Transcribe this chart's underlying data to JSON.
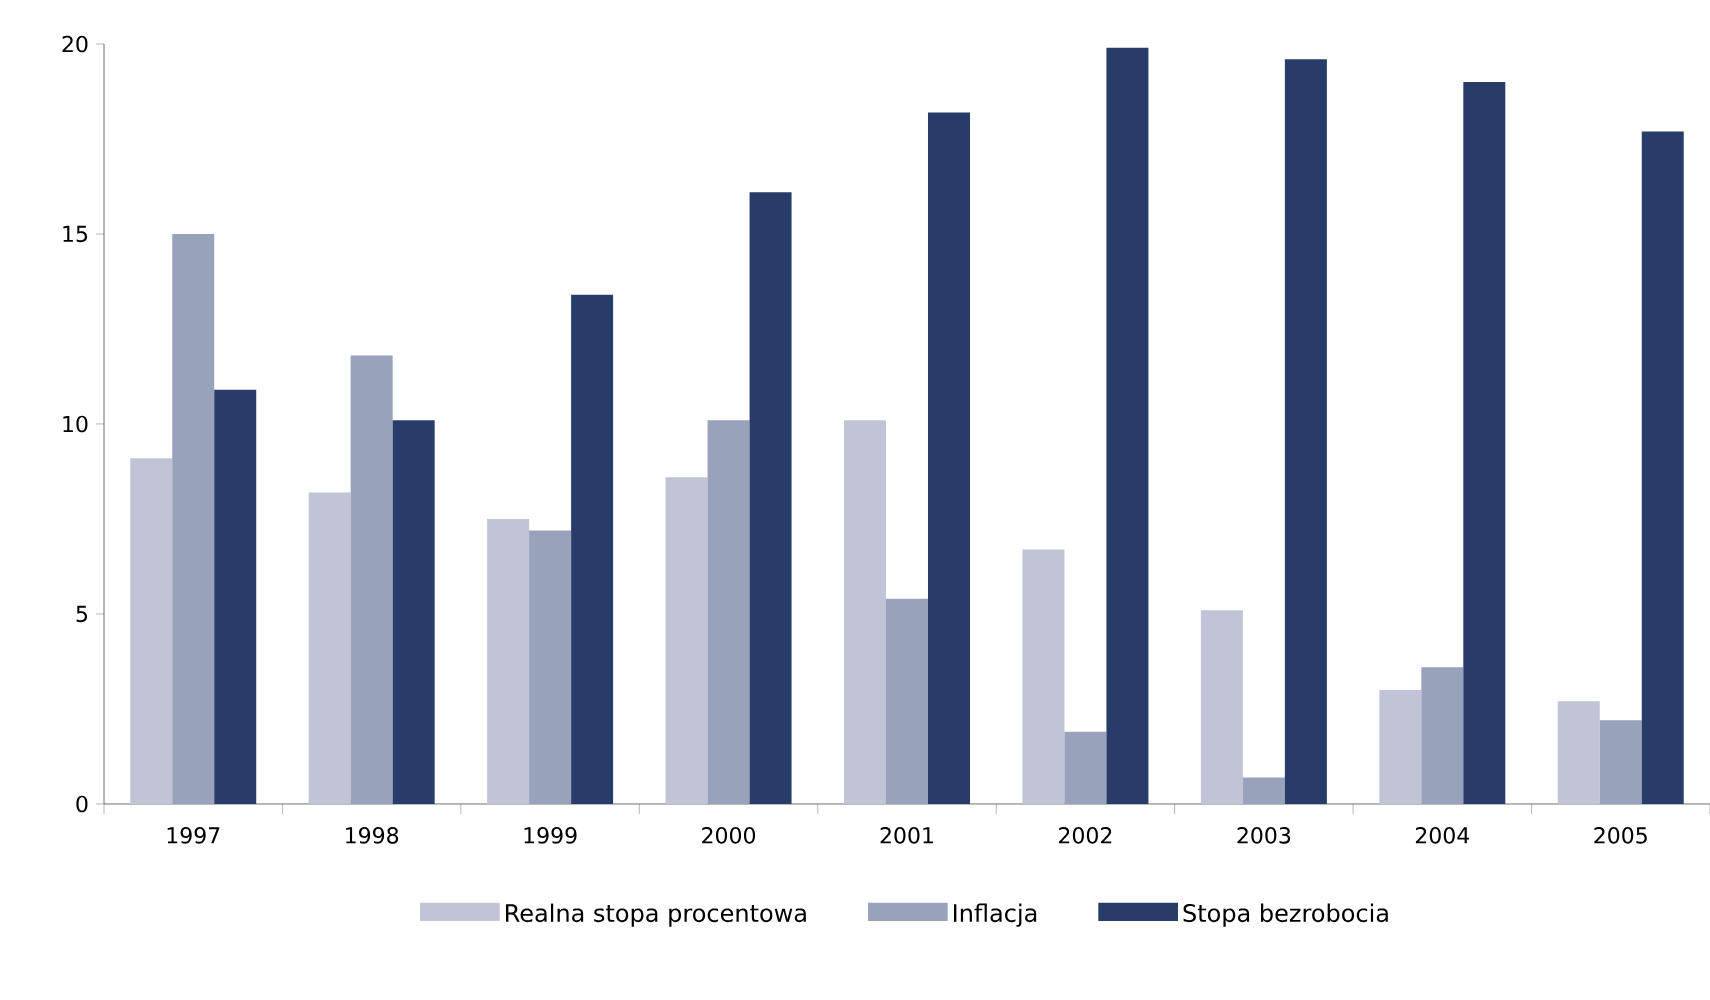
{
  "chart_data": {
    "type": "bar",
    "categories": [
      "1997",
      "1998",
      "1999",
      "2000",
      "2001",
      "2002",
      "2003",
      "2004",
      "2005"
    ],
    "series": [
      {
        "name": "Realna stopa procentowa",
        "color": "#c0c4d6",
        "values": [
          9.1,
          8.2,
          7.5,
          8.6,
          10.1,
          6.7,
          5.1,
          3.0,
          2.7
        ]
      },
      {
        "name": "Inflacja",
        "color": "#98a2bb",
        "values": [
          15.0,
          11.8,
          7.2,
          10.1,
          5.4,
          1.9,
          0.7,
          3.6,
          2.2
        ]
      },
      {
        "name": "Stopa bezrobocia",
        "color": "#283c6a",
        "values": [
          10.9,
          10.1,
          13.4,
          16.1,
          18.2,
          19.9,
          19.6,
          19.0,
          17.7
        ]
      }
    ],
    "ylim": [
      0,
      20
    ],
    "yticks": [
      0,
      5,
      10,
      15,
      20
    ],
    "grid": false,
    "legend": "bottom"
  }
}
